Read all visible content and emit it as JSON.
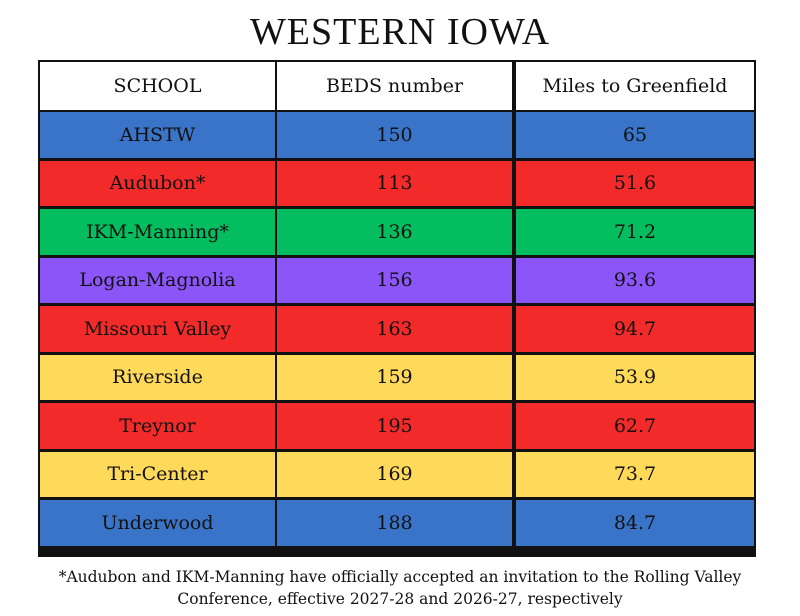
{
  "title": "WESTERN IOWA",
  "columns": [
    "SCHOOL",
    "BEDS number",
    "Miles to Greenfield"
  ],
  "colors": {
    "blue": "#3a74c8",
    "red": "#f22a2a",
    "green": "#04bd5e",
    "purple": "#8c55f8",
    "yellow": "#ffd95a"
  },
  "rows": [
    {
      "school": "AHSTW",
      "beds": "150",
      "miles": "65",
      "color": "#3a74c8"
    },
    {
      "school": "Audubon*",
      "beds": "113",
      "miles": "51.6",
      "color": "#f22a2a"
    },
    {
      "school": "IKM-Manning*",
      "beds": "136",
      "miles": "71.2",
      "color": "#04bd5e"
    },
    {
      "school": "Logan-Magnolia",
      "beds": "156",
      "miles": "93.6",
      "color": "#8c55f8"
    },
    {
      "school": "Missouri Valley",
      "beds": "163",
      "miles": "94.7",
      "color": "#f22a2a"
    },
    {
      "school": "Riverside",
      "beds": "159",
      "miles": "53.9",
      "color": "#ffd95a"
    },
    {
      "school": "Treynor",
      "beds": "195",
      "miles": "62.7",
      "color": "#f22a2a"
    },
    {
      "school": "Tri-Center",
      "beds": "169",
      "miles": "73.7",
      "color": "#ffd95a"
    },
    {
      "school": "Underwood",
      "beds": "188",
      "miles": "84.7",
      "color": "#3a74c8"
    }
  ],
  "footnote": {
    "line1": "*Audubon and IKM-Manning have officially accepted an invitation to the Rolling Valley",
    "line2": "Conference, effective 2027-28 and 2026-27, respectively"
  }
}
